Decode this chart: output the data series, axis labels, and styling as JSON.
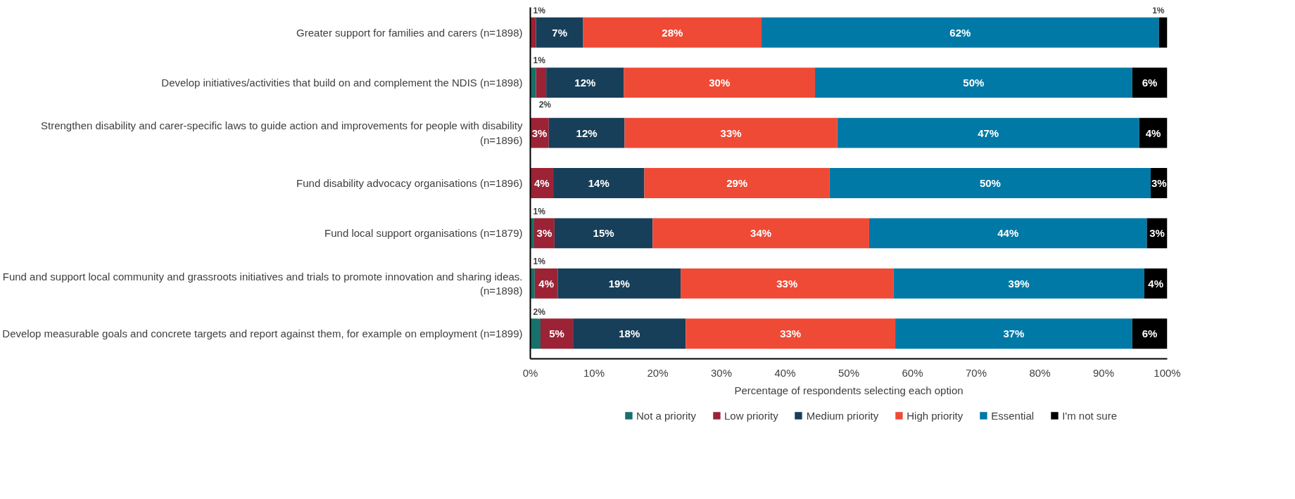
{
  "chart_data": {
    "type": "bar",
    "orientation": "horizontal",
    "stacked": true,
    "categories": [
      "Greater support for families and carers (n=1898)",
      "Develop initiatives/activities that build on and complement the NDIS (n=1898)",
      "Strengthen disability and carer-specific laws to guide action and improvements for people with disability (n=1896)",
      "Fund disability advocacy organisations (n=1896)",
      "Fund local support organisations (n=1879)",
      "Fund and support local community and grassroots initiatives and trials to promote innovation and sharing ideas. (n=1898)",
      "Develop measurable goals and concrete targets and report against them, for example on employment (n=1899)"
    ],
    "series": [
      {
        "name": "Not a priority",
        "color": "#17706a",
        "values": [
          0,
          0.9,
          0,
          0,
          0.6,
          0.7,
          1.6
        ],
        "value_labels": [
          null,
          "1%",
          null,
          null,
          "1%",
          "1%",
          "2%"
        ]
      },
      {
        "name": "Low priority",
        "color": "#9b2335",
        "values": [
          0.9,
          1.6,
          2.9,
          3.6,
          3.2,
          3.6,
          5.1
        ],
        "value_labels": [
          "1%",
          "2%",
          "3%",
          "4%",
          "3%",
          "4%",
          "5%"
        ]
      },
      {
        "name": "Medium priority",
        "color": "#173f5a",
        "values": [
          7.4,
          12.2,
          11.9,
          14.3,
          15.4,
          19.3,
          17.7
        ],
        "value_labels": [
          "7%",
          "12%",
          "12%",
          "14%",
          "15%",
          "19%",
          "18%"
        ]
      },
      {
        "name": "High priority",
        "color": "#ef4a36",
        "values": [
          28,
          30,
          33.4,
          29.1,
          34,
          33.4,
          32.9
        ],
        "value_labels": [
          "28%",
          "30%",
          "33%",
          "29%",
          "34%",
          "33%",
          "33%"
        ]
      },
      {
        "name": "Essential",
        "color": "#0079a6",
        "values": [
          62.4,
          49.8,
          47.4,
          50.4,
          43.6,
          39.4,
          37.2
        ],
        "value_labels": [
          "62%",
          "50%",
          "47%",
          "50%",
          "44%",
          "39%",
          "37%"
        ]
      },
      {
        "name": "I'm not sure",
        "color": "#000000",
        "values": [
          1.3,
          5.5,
          4.4,
          2.6,
          3.2,
          3.6,
          5.5
        ],
        "value_labels": [
          "1%",
          "6%",
          "4%",
          "3%",
          "3%",
          "4%",
          "6%"
        ]
      }
    ],
    "xlim": [
      0,
      100
    ],
    "xticks": [
      {
        "value": 0,
        "label": "0%"
      },
      {
        "value": 10,
        "label": "10%"
      },
      {
        "value": 20,
        "label": "20%"
      },
      {
        "value": 30,
        "label": "30%"
      },
      {
        "value": 40,
        "label": "40%"
      },
      {
        "value": 50,
        "label": "50%"
      },
      {
        "value": 60,
        "label": "60%"
      },
      {
        "value": 70,
        "label": "70%"
      },
      {
        "value": 80,
        "label": "80%"
      },
      {
        "value": 90,
        "label": "90%"
      },
      {
        "value": 100,
        "label": "100%"
      }
    ],
    "xlabel": "Percentage of respondents selecting each option",
    "grid": false,
    "legend": "bottom"
  }
}
